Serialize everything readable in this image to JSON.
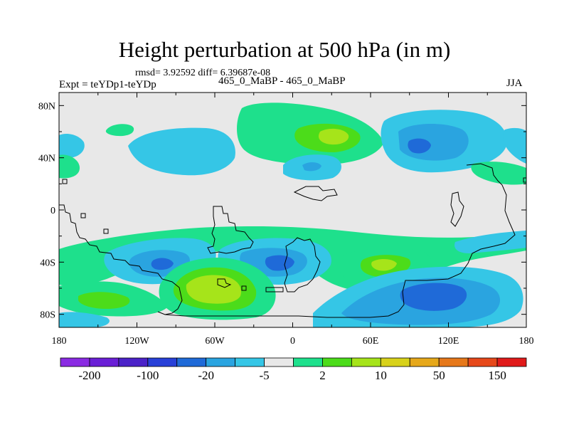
{
  "title": "Height perturbation at 500 hPa (in m)",
  "stats_line": "rmsd= 3.92592 diff= 6.39687e-08",
  "left_label": "Expt = teYDp1-teYDp",
  "center_label": "465_0_MaBP - 465_0_MaBP",
  "right_label": "JJA",
  "lat_ticks": [
    {
      "label": "80N",
      "value": 80
    },
    {
      "label": "40N",
      "value": 40
    },
    {
      "label": "0",
      "value": 0
    },
    {
      "label": "40S",
      "value": -40
    },
    {
      "label": "80S",
      "value": -80
    }
  ],
  "lon_ticks": [
    {
      "label": "180",
      "value": -180
    },
    {
      "label": "120W",
      "value": -120
    },
    {
      "label": "60W",
      "value": -60
    },
    {
      "label": "0",
      "value": 0
    },
    {
      "label": "60E",
      "value": 60
    },
    {
      "label": "120E",
      "value": 120
    },
    {
      "label": "180",
      "value": 180
    }
  ],
  "colorbar": {
    "colors": [
      "#8a2be2",
      "#6a1fd6",
      "#4b22c8",
      "#2840d8",
      "#1f6ad8",
      "#2aa4e0",
      "#35c6e6",
      "#e8e8e8",
      "#1ee08c",
      "#4cdc1a",
      "#a6e41a",
      "#d8d21a",
      "#e6a81a",
      "#e6781a",
      "#e6481a",
      "#e01a1a"
    ],
    "labels": [
      "-200",
      "-100",
      "-20",
      "-5",
      "2",
      "10",
      "50",
      "150"
    ]
  },
  "colors": {
    "background": "#e8e8e8",
    "light_blue": "#35c6e6",
    "mid_blue": "#2aa4e0",
    "blue": "#1f6ad8",
    "deep_blue": "#2840d8",
    "teal_green": "#1ee08c",
    "green": "#4cdc1a",
    "yellow_green": "#a6e41a"
  }
}
